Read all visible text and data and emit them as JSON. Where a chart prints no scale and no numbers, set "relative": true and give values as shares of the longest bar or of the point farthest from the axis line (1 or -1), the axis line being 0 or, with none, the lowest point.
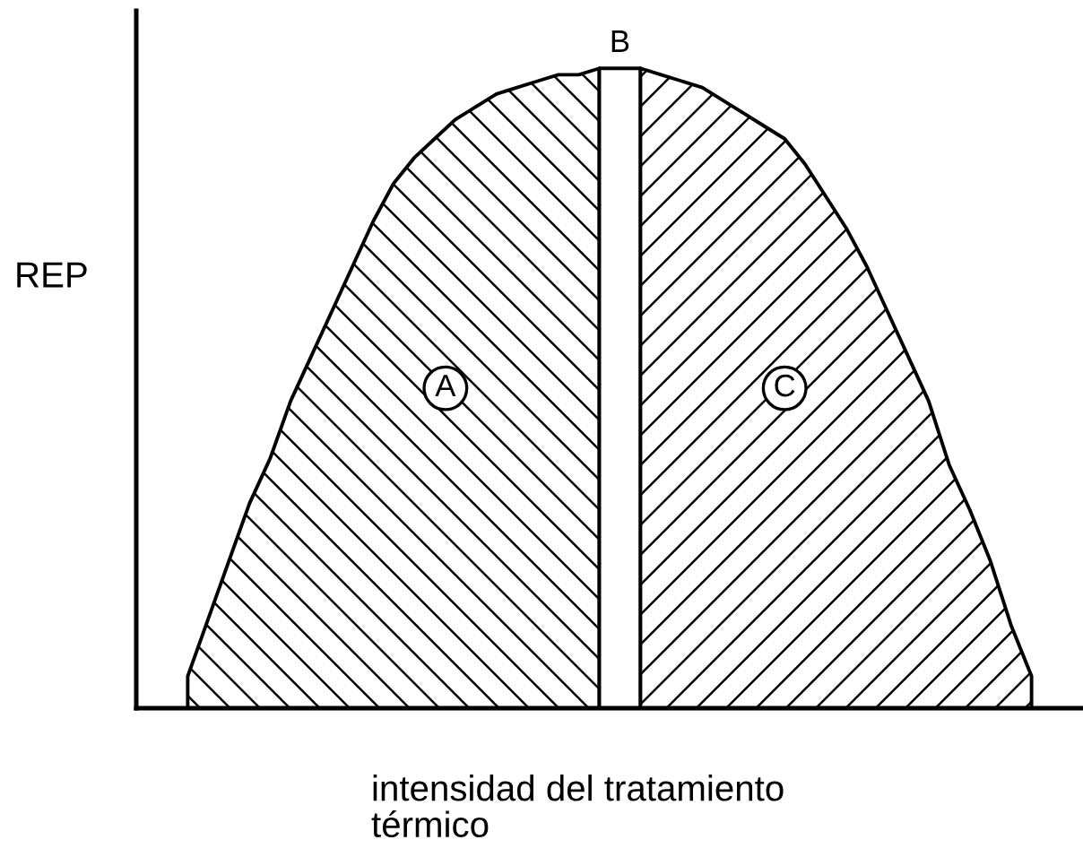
{
  "chart_data": {
    "type": "area",
    "relative": true,
    "xlabel": "intensidad del tratamiento\ntérmico",
    "ylabel": "REP",
    "categories": [
      null,
      null,
      null,
      null,
      null,
      null,
      null,
      null,
      null,
      null,
      null,
      null,
      null,
      null,
      null,
      null,
      null,
      null,
      null,
      null,
      null,
      null,
      null,
      null,
      null,
      null,
      null,
      null,
      null,
      null,
      null,
      null,
      null,
      null,
      null,
      null,
      null,
      null,
      null,
      null,
      null,
      null,
      null,
      null,
      null,
      null
    ],
    "series": [
      {
        "name": "A",
        "color": "#000000",
        "values": [
          null,
          null,
          0.05,
          0.14,
          0.23,
          0.32,
          0.39,
          0.48,
          0.55,
          0.62,
          0.69,
          0.76,
          0.82,
          0.86,
          0.89,
          0.92,
          0.94,
          0.96,
          0.97,
          0.98,
          0.99,
          0.99,
          1.0,
          null,
          null,
          null,
          null,
          null,
          null,
          null,
          null,
          null,
          null,
          null,
          null,
          null,
          null,
          null,
          null,
          null,
          null,
          null,
          null,
          null,
          null,
          null
        ]
      },
      {
        "name": "B",
        "color": "#000000",
        "values": [
          null,
          null,
          null,
          null,
          null,
          null,
          null,
          null,
          null,
          null,
          null,
          null,
          null,
          null,
          null,
          null,
          null,
          null,
          null,
          null,
          null,
          null,
          1.0,
          1.0,
          1.0,
          null,
          null,
          null,
          null,
          null,
          null,
          null,
          null,
          null,
          null,
          null,
          null,
          null,
          null,
          null,
          null,
          null,
          null,
          null,
          null,
          null
        ]
      },
      {
        "name": "C",
        "color": "#000000",
        "values": [
          null,
          null,
          null,
          null,
          null,
          null,
          null,
          null,
          null,
          null,
          null,
          null,
          null,
          null,
          null,
          null,
          null,
          null,
          null,
          null,
          null,
          null,
          null,
          null,
          1.0,
          0.99,
          0.98,
          0.97,
          0.95,
          0.93,
          0.91,
          0.89,
          0.85,
          0.8,
          0.75,
          0.69,
          0.62,
          0.55,
          0.48,
          0.38,
          0.31,
          0.23,
          0.13,
          0.05,
          null,
          null
        ]
      }
    ]
  }
}
